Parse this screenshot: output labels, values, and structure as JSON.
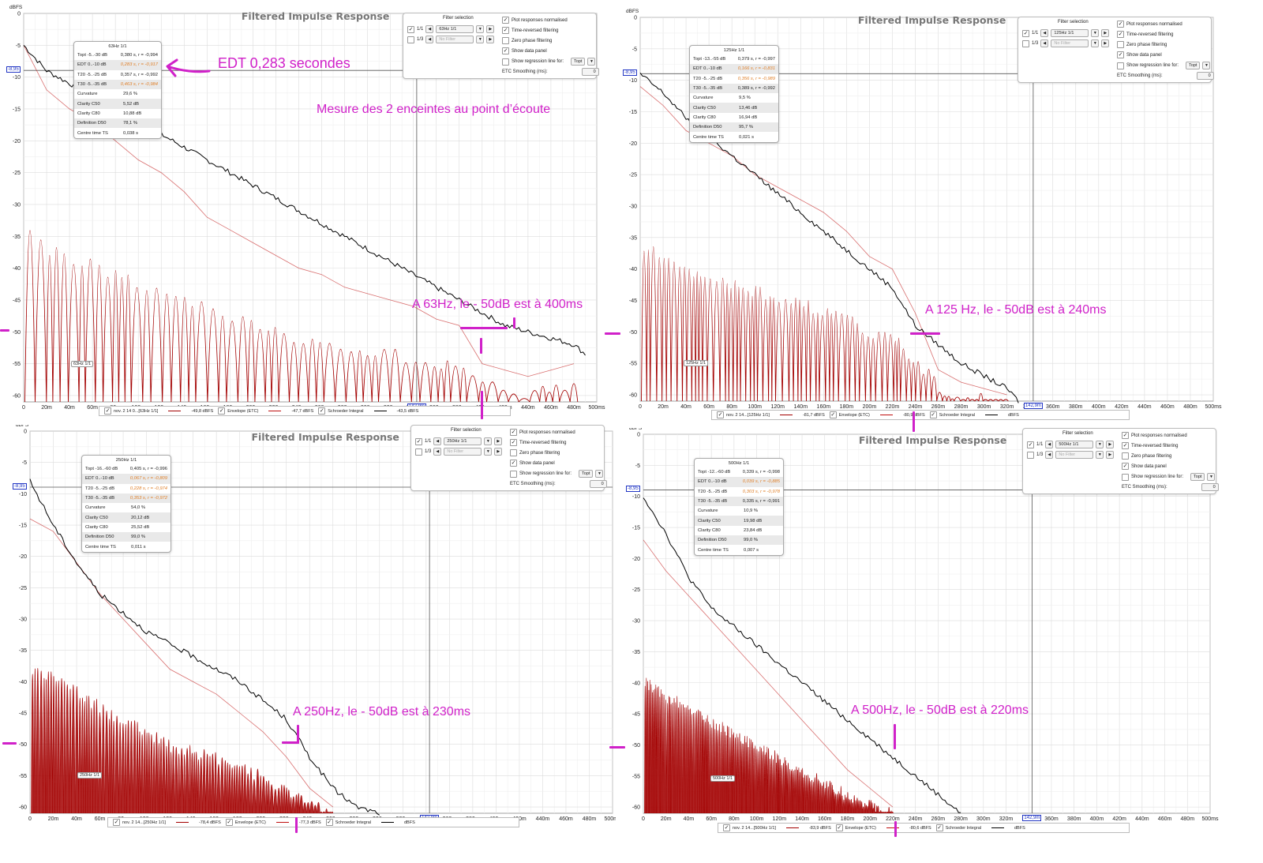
{
  "annotations": {
    "edt_note": "EDT 0,283 secondes",
    "measure_note": "Mesure des 2 enceintes au point d’écoute",
    "p63_note": "A 63Hz, le - 50dB est à 400ms",
    "p125_note": "A 125 Hz, le - 50dB est à 240ms",
    "p250_note": "A 250Hz, le - 50dB est à 230ms",
    "p500_note": "A 500Hz, le - 50dB est à 220ms"
  },
  "colors": {
    "accent": "#d021c9",
    "trace": "#a30000",
    "schroeder": "#000000",
    "cursor": "#2236c4"
  },
  "panels": [
    {
      "id": "p63",
      "title": "Filtered Impulse Response",
      "unit": "dBFS",
      "cursor_value": "-8,95",
      "cursor_time": "142,9m",
      "trace_tag": "63Hz 1/1",
      "filter": {
        "header": "Filter selection",
        "row1_label": "1/1",
        "row1_value": "63Hz 1/1",
        "row2_label": "1/3",
        "row2_value": "No Filter",
        "opt_normalised": "Plot responses normalised",
        "opt_time_reversed": "Time-reversed filtering",
        "opt_zero_phase": "Zero phase filtering",
        "opt_data_panel": "Show data panel",
        "opt_regression": "Show regression line for:",
        "regression_value": "Topt",
        "smoothing_label": "ETC Smoothing (ms):",
        "smoothing_value": "0"
      },
      "data_panel": {
        "header": "63Hz 1/1",
        "rows": [
          {
            "k": "Topt -5..-30 dB",
            "v": "0,380 s,  r = -0,994",
            "orange": false
          },
          {
            "k": "EDT  0..-10 dB",
            "v": "0,283 s,  r = -0,917",
            "orange": true
          },
          {
            "k": "T20 -5..-25 dB",
            "v": "0,357 s,  r = -0,992",
            "orange": false
          },
          {
            "k": "T30 -5..-35 dB",
            "v": "0,463 s,  r = -0,984",
            "orange": true
          },
          {
            "k": "Curvature",
            "v": "29,6 %",
            "orange": false
          },
          {
            "k": "Clarity C50",
            "v": "5,52 dB",
            "orange": false
          },
          {
            "k": "Clarity C80",
            "v": "10,88 dB",
            "orange": false
          },
          {
            "k": "Definition D50",
            "v": "78,1 %",
            "orange": false
          },
          {
            "k": "Centre time TS",
            "v": "0,038 s",
            "orange": false
          }
        ]
      },
      "legend": {
        "trace_name": "nov. 2 14 0...[63Hz 1/1]",
        "trace_val": "-49,8 dBFS",
        "env_name": "Envelope (ETC)",
        "env_val": "-47,7 dBFS",
        "sch_name": "Schroeder Integral",
        "sch_val": "-43,5 dBFS"
      }
    },
    {
      "id": "p125",
      "title": "Filtered Impulse Response",
      "unit": "dBFS",
      "cursor_value": "-8,95",
      "cursor_time": "142,9m",
      "trace_tag": "125Hz 1/1",
      "filter": {
        "header": "Filter selection",
        "row1_label": "1/1",
        "row1_value": "125Hz 1/1",
        "row2_label": "1/3",
        "row2_value": "No Filter",
        "opt_normalised": "Plot responses normalised",
        "opt_time_reversed": "Time-reversed filtering",
        "opt_zero_phase": "Zero phase filtering",
        "opt_data_panel": "Show data panel",
        "opt_regression": "Show regression line for:",
        "regression_value": "Topt",
        "smoothing_label": "ETC Smoothing (ms):",
        "smoothing_value": "0"
      },
      "data_panel": {
        "header": "125Hz 1/1",
        "rows": [
          {
            "k": "Topt -13..-55 dB",
            "v": "0,379 s,  r = -0,997",
            "orange": false
          },
          {
            "k": "EDT  0..-10 dB",
            "v": "0,166 s,  r = -0,831",
            "orange": true
          },
          {
            "k": "T20 -5..-25 dB",
            "v": "0,356 s,  r = -0,989",
            "orange": true
          },
          {
            "k": "T30 -5..-35 dB",
            "v": "0,389 s,  r = -0,992",
            "orange": false
          },
          {
            "k": "Curvature",
            "v": "9,5 %",
            "orange": false
          },
          {
            "k": "Clarity C50",
            "v": "13,46 dB",
            "orange": false
          },
          {
            "k": "Clarity C80",
            "v": "16,94 dB",
            "orange": false
          },
          {
            "k": "Definition D50",
            "v": "95,7 %",
            "orange": false
          },
          {
            "k": "Centre time TS",
            "v": "0,021 s",
            "orange": false
          }
        ]
      },
      "legend": {
        "trace_name": "nov. 2 14...[125Hz 1/1]",
        "trace_val": "-81,7 dBFS",
        "env_name": "Envelope (ETC)",
        "env_val": "-80,9 dBFS",
        "sch_name": "Schroeder Integral",
        "sch_val": "dBFS"
      }
    },
    {
      "id": "p250",
      "title": "Filtered Impulse Response",
      "unit": "dBFS",
      "cursor_value": "-8,95",
      "cursor_time": "142,9m",
      "trace_tag": "250Hz 1/1",
      "filter": {
        "header": "Filter selection",
        "row1_label": "1/1",
        "row1_value": "250Hz 1/1",
        "row2_label": "1/3",
        "row2_value": "No Filter",
        "opt_normalised": "Plot responses normalised",
        "opt_time_reversed": "Time-reversed filtering",
        "opt_zero_phase": "Zero phase filtering",
        "opt_data_panel": "Show data panel",
        "opt_regression": "Show regression line for:",
        "regression_value": "Topt",
        "smoothing_label": "ETC Smoothing (ms):",
        "smoothing_value": "0"
      },
      "data_panel": {
        "header": "250Hz 1/1",
        "rows": [
          {
            "k": "Topt -16..-60 dB",
            "v": "0,405 s,  r = -0,996",
            "orange": false
          },
          {
            "k": "EDT  0..-10 dB",
            "v": "0,067 s,  r = -0,809",
            "orange": true
          },
          {
            "k": "T20 -5..-25 dB",
            "v": "0,228 s,  r = -0,974",
            "orange": true
          },
          {
            "k": "T30 -5..-35 dB",
            "v": "0,353 s,  r = -0,972",
            "orange": true
          },
          {
            "k": "Curvature",
            "v": "54,0 %",
            "orange": false
          },
          {
            "k": "Clarity C50",
            "v": "20,12 dB",
            "orange": false
          },
          {
            "k": "Clarity C80",
            "v": "25,52 dB",
            "orange": false
          },
          {
            "k": "Definition D50",
            "v": "99,0 %",
            "orange": false
          },
          {
            "k": "Centre time TS",
            "v": "0,011 s",
            "orange": false
          }
        ]
      },
      "legend": {
        "trace_name": "nov. 2 14...[250Hz 1/1]",
        "trace_val": "-78,4 dBFS",
        "env_name": "Envelope (ETC)",
        "env_val": "-77,3 dBFS",
        "sch_name": "Schroeder Integral",
        "sch_val": "dBFS"
      }
    },
    {
      "id": "p500",
      "title": "Filtered Impulse Response",
      "unit": "dBFS",
      "cursor_value": "-8,95",
      "cursor_time": "142,9m",
      "trace_tag": "500Hz 1/1",
      "filter": {
        "header": "Filter selection",
        "row1_label": "1/1",
        "row1_value": "500Hz 1/1",
        "row2_label": "1/3",
        "row2_value": "No Filter",
        "opt_normalised": "Plot responses normalised",
        "opt_time_reversed": "Time-reversed filtering",
        "opt_zero_phase": "Zero phase filtering",
        "opt_data_panel": "Show data panel",
        "opt_regression": "Show regression line for:",
        "regression_value": "Topt",
        "smoothing_label": "ETC Smoothing (ms):",
        "smoothing_value": "0"
      },
      "data_panel": {
        "header": "500Hz 1/1",
        "rows": [
          {
            "k": "Topt -12..-60 dB",
            "v": "0,339 s,  r = -0,998",
            "orange": false
          },
          {
            "k": "EDT  0..-10 dB",
            "v": "0,039 s,  r = -0,885",
            "orange": true
          },
          {
            "k": "T20 -5..-25 dB",
            "v": "0,303 s,  r = -0,978",
            "orange": true
          },
          {
            "k": "T30 -5..-35 dB",
            "v": "0,335 s,  r = -0,991",
            "orange": false
          },
          {
            "k": "Curvature",
            "v": "10,9 %",
            "orange": false
          },
          {
            "k": "Clarity C50",
            "v": "19,98 dB",
            "orange": false
          },
          {
            "k": "Clarity C80",
            "v": "23,84 dB",
            "orange": false
          },
          {
            "k": "Definition D50",
            "v": "99,0 %",
            "orange": false
          },
          {
            "k": "Centre time TS",
            "v": "0,007 s",
            "orange": false
          }
        ]
      },
      "legend": {
        "trace_name": "nov. 2 14...[500Hz 1/1]",
        "trace_val": "-83,9 dBFS",
        "env_name": "Envelope (ETC)",
        "env_val": "-80,6 dBFS",
        "sch_name": "Schroeder Integral",
        "sch_val": "dBFS"
      }
    }
  ],
  "chart_data": [
    {
      "type": "line",
      "title": "Filtered Impulse Response",
      "ylabel": "dBFS",
      "xlim": [
        0,
        500
      ],
      "ylim": [
        -61,
        0
      ],
      "yticks": [
        0,
        -5,
        -10,
        -15,
        -20,
        -25,
        -30,
        -35,
        -40,
        -45,
        -50,
        -55,
        -60
      ],
      "xticks": [
        "0",
        "20m",
        "40m",
        "60m",
        "80m",
        "100m",
        "120m",
        "140m",
        "160m",
        "180m",
        "200m",
        "220m",
        "240m",
        "260m",
        "280m",
        "300m",
        "320m",
        "340m",
        "360m",
        "380m",
        "400m",
        "420m",
        "440m",
        "460m",
        "480m",
        "500ms"
      ],
      "series": [
        {
          "name": "Schroeder Integral",
          "x": [
            0,
            20,
            40,
            60,
            80,
            100,
            120,
            140,
            160,
            180,
            200,
            220,
            240,
            260,
            280,
            300,
            320,
            340,
            360,
            380,
            400,
            420,
            440,
            460,
            480,
            490
          ],
          "y": [
            -5,
            -9,
            -11,
            -13,
            -15,
            -17,
            -19,
            -21,
            -23,
            -25,
            -27,
            -29,
            -31,
            -33,
            -35,
            -37,
            -39,
            -41,
            -43,
            -45,
            -47,
            -49,
            -50,
            -51,
            -52,
            -53.5
          ]
        },
        {
          "name": "nov. 2 14 0...[63Hz 1/1]",
          "x": [
            0,
            20,
            40,
            60,
            80,
            100,
            120,
            140,
            160,
            180,
            200,
            220,
            240,
            260,
            280,
            300,
            320,
            340,
            360,
            380,
            400,
            420,
            440,
            460,
            480
          ],
          "y": [
            -5,
            -12,
            -15,
            -17,
            -20,
            -23,
            -25,
            -28,
            -32,
            -34,
            -36,
            -38,
            -40,
            -41,
            -43,
            -44,
            -45,
            -46,
            -48,
            -49,
            -55,
            -56,
            -57,
            -56,
            -55
          ]
        }
      ]
    },
    {
      "type": "line",
      "title": "Filtered Impulse Response",
      "ylabel": "dBFS",
      "xlim": [
        0,
        500
      ],
      "ylim": [
        -61,
        0
      ],
      "yticks": [
        0,
        -5,
        -10,
        -15,
        -20,
        -25,
        -30,
        -35,
        -40,
        -45,
        -50,
        -55,
        -60
      ],
      "xticks": [
        "0",
        "20m",
        "40m",
        "60m",
        "80m",
        "100m",
        "120m",
        "140m",
        "160m",
        "180m",
        "200m",
        "220m",
        "240m",
        "260m",
        "280m",
        "300m",
        "320m",
        "340m",
        "360m",
        "380m",
        "400m",
        "420m",
        "440m",
        "460m",
        "480m",
        "500ms"
      ],
      "series": [
        {
          "name": "Schroeder Integral",
          "x": [
            0,
            20,
            40,
            60,
            80,
            100,
            120,
            140,
            160,
            180,
            200,
            220,
            240,
            260,
            280,
            300,
            320,
            330
          ],
          "y": [
            -9,
            -12,
            -16,
            -19,
            -22,
            -25,
            -28,
            -31,
            -34,
            -37,
            -40,
            -43,
            -49,
            -52,
            -55,
            -57,
            -59,
            -61
          ]
        },
        {
          "name": "nov. 2 14...[125Hz 1/1]",
          "x": [
            0,
            20,
            40,
            60,
            80,
            100,
            120,
            140,
            160,
            180,
            200,
            220,
            240,
            260,
            280,
            300,
            320
          ],
          "y": [
            -11,
            -14,
            -18,
            -20,
            -22,
            -25,
            -27,
            -29,
            -31,
            -34,
            -38,
            -40,
            -47,
            -56,
            -58,
            -59,
            -60
          ]
        }
      ]
    },
    {
      "type": "line",
      "title": "Filtered Impulse Response",
      "ylabel": "dBFS",
      "xlim": [
        0,
        500
      ],
      "ylim": [
        -61,
        0
      ],
      "yticks": [
        0,
        -5,
        -10,
        -15,
        -20,
        -25,
        -30,
        -35,
        -40,
        -45,
        -50,
        -55,
        -60
      ],
      "xticks": [
        "0",
        "20m",
        "40m",
        "60m",
        "80m",
        "100m",
        "120m",
        "140m",
        "160m",
        "180m",
        "200m",
        "220m",
        "240m",
        "260m",
        "280m",
        "300m",
        "320m",
        "340m",
        "360m",
        "380m",
        "400m",
        "420m",
        "440m",
        "460m",
        "480m",
        "500ms"
      ],
      "series": [
        {
          "name": "Schroeder Integral",
          "x": [
            0,
            20,
            40,
            60,
            80,
            100,
            120,
            140,
            160,
            180,
            200,
            220,
            240,
            260,
            280,
            300
          ],
          "y": [
            -8,
            -15,
            -21,
            -26,
            -29,
            -32,
            -34,
            -36,
            -38,
            -40,
            -43,
            -46,
            -52,
            -57,
            -60,
            -61
          ]
        },
        {
          "name": "nov. 2 14...[250Hz 1/1]",
          "x": [
            0,
            20,
            40,
            60,
            80,
            100,
            120,
            140,
            160,
            180,
            200,
            220,
            240,
            260
          ],
          "y": [
            -14,
            -16,
            -21,
            -26,
            -30,
            -34,
            -38,
            -40,
            -42,
            -45,
            -48,
            -52,
            -57,
            -60
          ]
        }
      ]
    },
    {
      "type": "line",
      "title": "Filtered Impulse Response",
      "ylabel": "dBFS",
      "xlim": [
        0,
        500
      ],
      "ylim": [
        -61,
        0
      ],
      "yticks": [
        0,
        -5,
        -10,
        -15,
        -20,
        -25,
        -30,
        -35,
        -40,
        -45,
        -50,
        -55,
        -60
      ],
      "xticks": [
        "0",
        "20m",
        "40m",
        "60m",
        "80m",
        "100m",
        "120m",
        "140m",
        "160m",
        "180m",
        "200m",
        "220m",
        "240m",
        "260m",
        "280m",
        "300m",
        "320m",
        "340m",
        "360m",
        "380m",
        "400m",
        "420m",
        "440m",
        "460m",
        "480m",
        "500ms"
      ],
      "series": [
        {
          "name": "Schroeder Integral",
          "x": [
            0,
            20,
            40,
            60,
            80,
            100,
            120,
            140,
            160,
            180,
            200,
            220,
            240,
            260,
            280
          ],
          "y": [
            -10,
            -16,
            -23,
            -28,
            -31,
            -34,
            -37,
            -40,
            -43,
            -46,
            -49,
            -52,
            -55,
            -58,
            -61
          ]
        },
        {
          "name": "nov. 2 14...[500Hz 1/1]",
          "x": [
            0,
            20,
            40,
            60,
            80,
            100,
            120,
            140,
            160,
            180,
            200,
            220
          ],
          "y": [
            -17,
            -22,
            -26,
            -30,
            -34,
            -38,
            -42,
            -46,
            -50,
            -54,
            -57,
            -60
          ]
        }
      ]
    }
  ]
}
